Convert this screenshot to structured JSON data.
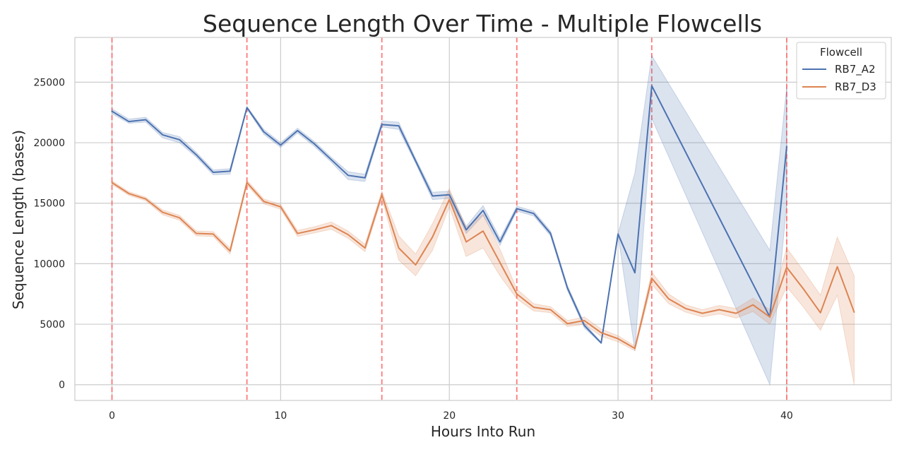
{
  "chart_data": {
    "type": "line",
    "title": "Sequence Length Over Time - Multiple Flowcells",
    "xlabel": "Hours Into Run",
    "ylabel": "Sequence Length (bases)",
    "xlim": [
      -2.2,
      46.2
    ],
    "ylim": [
      -1300,
      28700
    ],
    "xticks": [
      0,
      10,
      20,
      30,
      40
    ],
    "yticks": [
      0,
      5000,
      10000,
      15000,
      20000,
      25000
    ],
    "grid": true,
    "legend": {
      "title": "Flowcell",
      "placement": "top-right"
    },
    "vlines": {
      "x": [
        0,
        8,
        16,
        24,
        32,
        40
      ],
      "color": "#ff6b6b",
      "style": "dashed"
    },
    "series": [
      {
        "name": "RB7_A2",
        "color": "#4c72b0",
        "x": [
          0,
          1,
          2,
          3,
          4,
          5,
          6,
          7,
          8,
          9,
          10,
          11,
          12,
          13,
          14,
          15,
          16,
          17,
          18,
          19,
          20,
          21,
          22,
          23,
          24,
          25,
          26,
          27,
          28,
          29,
          30,
          31,
          32,
          39,
          40
        ],
        "y": [
          22600,
          21750,
          21900,
          20650,
          20250,
          19000,
          17550,
          17650,
          22900,
          20900,
          19800,
          21000,
          19900,
          18600,
          17300,
          17100,
          21500,
          21400,
          18500,
          15600,
          15700,
          12800,
          14400,
          11800,
          14550,
          14150,
          12500,
          8000,
          4900,
          3450,
          12450,
          9250,
          24700,
          5600,
          19700
        ],
        "lower": [
          22400,
          21600,
          21700,
          20400,
          20000,
          18800,
          17350,
          17400,
          22800,
          20700,
          19600,
          20800,
          19700,
          18400,
          16950,
          16800,
          21300,
          21100,
          18300,
          15300,
          15400,
          12500,
          14000,
          11500,
          14350,
          13950,
          12300,
          7800,
          4700,
          3400,
          12400,
          2800,
          22000,
          0,
          15000
        ],
        "upper": [
          22800,
          21950,
          22100,
          20850,
          20500,
          19200,
          17750,
          17850,
          23000,
          21100,
          20000,
          21200,
          20100,
          18800,
          17600,
          17400,
          21800,
          21700,
          18700,
          15900,
          16000,
          13100,
          14800,
          12100,
          14750,
          14350,
          12700,
          8200,
          5100,
          3500,
          12500,
          17500,
          27200,
          11100,
          24600
        ]
      },
      {
        "name": "RB7_D3",
        "color": "#dd8452",
        "x": [
          0,
          1,
          2,
          3,
          4,
          5,
          6,
          7,
          8,
          9,
          10,
          11,
          12,
          13,
          14,
          15,
          16,
          17,
          18,
          19,
          20,
          21,
          22,
          23,
          24,
          25,
          26,
          27,
          28,
          29,
          30,
          31,
          32,
          33,
          34,
          35,
          36,
          37,
          38,
          39,
          40,
          41,
          42,
          43,
          44
        ],
        "y": [
          16700,
          15800,
          15350,
          14250,
          13800,
          12500,
          12450,
          11050,
          16700,
          15150,
          14700,
          12500,
          12800,
          13150,
          12400,
          11300,
          15700,
          11300,
          9900,
          12200,
          15300,
          11800,
          12700,
          10100,
          7500,
          6400,
          6200,
          5050,
          5300,
          4300,
          3800,
          3000,
          8800,
          7100,
          6300,
          5900,
          6200,
          5900,
          6600,
          5600,
          9700,
          7900,
          5950,
          9750,
          6000
        ],
        "lower": [
          16550,
          15650,
          15200,
          14050,
          13600,
          12300,
          12250,
          10800,
          16500,
          14950,
          14500,
          12250,
          12550,
          12850,
          12100,
          11000,
          15400,
          10300,
          9000,
          11100,
          14700,
          10600,
          11300,
          9000,
          7100,
          6100,
          5950,
          4800,
          5000,
          4000,
          3550,
          2800,
          8300,
          6700,
          6000,
          5600,
          5850,
          5500,
          6050,
          5000,
          8100,
          6400,
          4500,
          7400,
          0
        ],
        "upper": [
          16850,
          15950,
          15500,
          14450,
          14000,
          12700,
          12650,
          11300,
          16900,
          15350,
          14900,
          12750,
          13050,
          13450,
          12700,
          11600,
          16000,
          12300,
          10800,
          13300,
          16200,
          13000,
          14100,
          11200,
          7900,
          6700,
          6450,
          5300,
          5600,
          4600,
          4050,
          3200,
          9300,
          7500,
          6600,
          6200,
          6550,
          6300,
          7150,
          6200,
          11300,
          9400,
          7400,
          12200,
          9000
        ]
      }
    ]
  }
}
